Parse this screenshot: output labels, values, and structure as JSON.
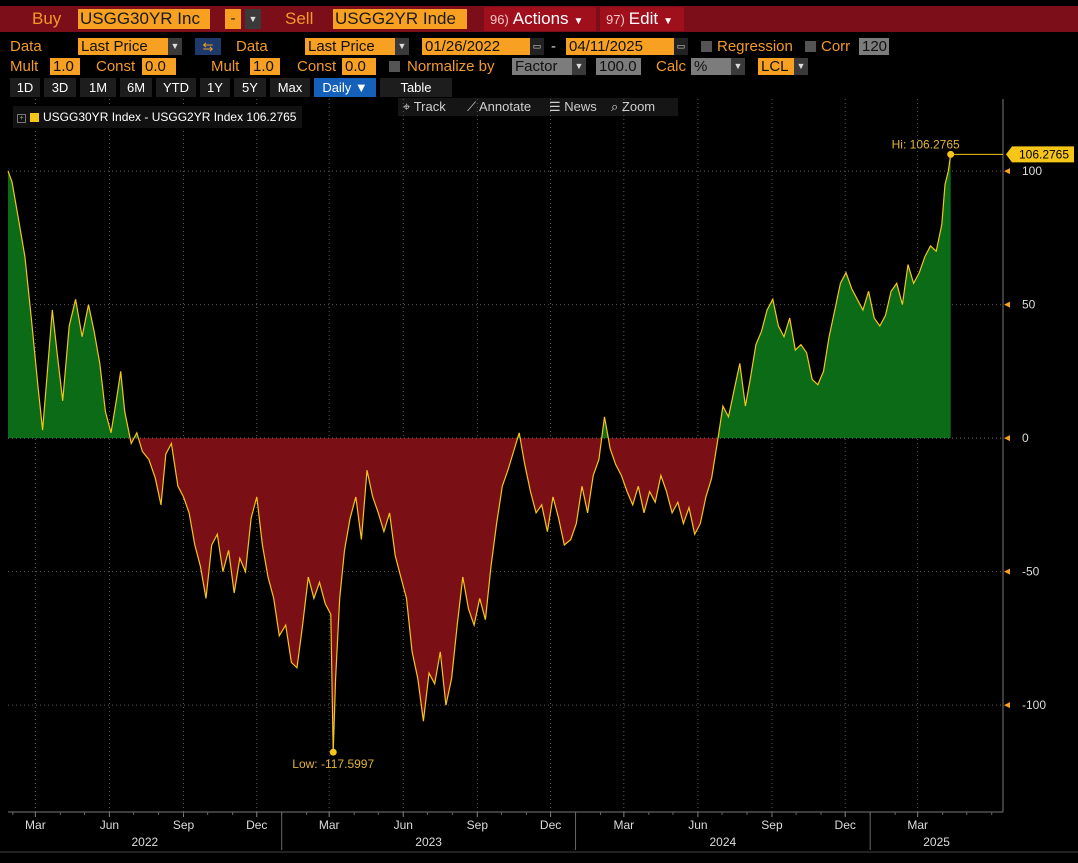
{
  "header": {
    "buy_label": "Buy",
    "buy_ticker": "USGG30YR Inc",
    "op_symbol": "-",
    "sell_label": "Sell",
    "sell_ticker": "USGG2YR Inde",
    "actions_num": "96)",
    "actions_label": "Actions",
    "edit_num": "97)",
    "edit_label": "Edit"
  },
  "controls": {
    "data1_label": "Data",
    "data1_value": "Last Price",
    "data2_label": "Data",
    "data2_value": "Last Price",
    "start_date": "01/26/2022",
    "date_sep": "-",
    "end_date": "04/11/2025",
    "regression_label": "Regression",
    "corr_label": "Corr",
    "corr_value": "120",
    "mult1_label": "Mult",
    "mult1_value": "1.0",
    "const1_label": "Const",
    "const1_value": "0.0",
    "mult2_label": "Mult",
    "mult2_value": "1.0",
    "const2_label": "Const",
    "const2_value": "0.0",
    "normalize_label": "Normalize by",
    "normalize_value": "Factor",
    "factor_value": "100.0",
    "calc_label": "Calc",
    "calc_value": "%",
    "currency_value": "LCL"
  },
  "tabs": [
    "1D",
    "3D",
    "1M",
    "6M",
    "YTD",
    "1Y",
    "5Y",
    "Max"
  ],
  "daily_label": "Daily ▼",
  "table_label": "Table",
  "tools": {
    "track": "Track",
    "annotate": "Annotate",
    "news": "News",
    "zoom": "Zoom"
  },
  "colors": {
    "positive_fill": "#0b6b16",
    "negative_fill": "#7a0f16",
    "line": "#f5c518",
    "header": "#7b0e18",
    "accent": "#f7a021"
  },
  "chart_data": {
    "type": "area",
    "series_name": "USGG30YR Index - USGG2YR Index",
    "last_value": 106.2765,
    "last_value_label": "106.2765",
    "legend_text": "USGG30YR Index - USGG2YR Index 106.2765",
    "hi_label": "Hi: 106.2765",
    "low_label": "Low: -117.5997",
    "ylim": [
      -140,
      127
    ],
    "yticks": [
      100,
      50,
      0,
      -50,
      -100
    ],
    "ytick_labels": [
      "100",
      "50",
      "0",
      "-50",
      "-100"
    ],
    "xlim": [
      "2022-01-26",
      "2025-06-15"
    ],
    "month_ticks": [
      {
        "date": "2022-03-01",
        "label": "Mar"
      },
      {
        "date": "2022-06-01",
        "label": "Jun"
      },
      {
        "date": "2022-09-01",
        "label": "Sep"
      },
      {
        "date": "2022-12-01",
        "label": "Dec"
      },
      {
        "date": "2023-03-01",
        "label": "Mar"
      },
      {
        "date": "2023-06-01",
        "label": "Jun"
      },
      {
        "date": "2023-09-01",
        "label": "Sep"
      },
      {
        "date": "2023-12-01",
        "label": "Dec"
      },
      {
        "date": "2024-03-01",
        "label": "Mar"
      },
      {
        "date": "2024-06-01",
        "label": "Jun"
      },
      {
        "date": "2024-09-01",
        "label": "Sep"
      },
      {
        "date": "2024-12-01",
        "label": "Dec"
      },
      {
        "date": "2025-03-01",
        "label": "Mar"
      }
    ],
    "year_ticks": [
      {
        "date": "2022-01-01",
        "label": "2022"
      },
      {
        "date": "2023-01-01",
        "label": "2023"
      },
      {
        "date": "2024-01-01",
        "label": "2024"
      },
      {
        "date": "2025-01-01",
        "label": "2025"
      }
    ],
    "grid": true,
    "points": [
      [
        "2022-01-26",
        100
      ],
      [
        "2022-01-31",
        96
      ],
      [
        "2022-02-08",
        82
      ],
      [
        "2022-02-16",
        68
      ],
      [
        "2022-02-24",
        45
      ],
      [
        "2022-03-04",
        20
      ],
      [
        "2022-03-10",
        3
      ],
      [
        "2022-03-16",
        25
      ],
      [
        "2022-03-22",
        48
      ],
      [
        "2022-03-28",
        32
      ],
      [
        "2022-04-04",
        14
      ],
      [
        "2022-04-12",
        42
      ],
      [
        "2022-04-20",
        52
      ],
      [
        "2022-04-28",
        38
      ],
      [
        "2022-05-06",
        50
      ],
      [
        "2022-05-13",
        40
      ],
      [
        "2022-05-20",
        28
      ],
      [
        "2022-05-27",
        10
      ],
      [
        "2022-06-03",
        2
      ],
      [
        "2022-06-10",
        15
      ],
      [
        "2022-06-15",
        25
      ],
      [
        "2022-06-20",
        10
      ],
      [
        "2022-06-28",
        -2
      ],
      [
        "2022-07-05",
        2
      ],
      [
        "2022-07-12",
        -5
      ],
      [
        "2022-07-20",
        -8
      ],
      [
        "2022-07-28",
        -15
      ],
      [
        "2022-08-04",
        -25
      ],
      [
        "2022-08-10",
        -6
      ],
      [
        "2022-08-17",
        -2
      ],
      [
        "2022-08-25",
        -18
      ],
      [
        "2022-09-01",
        -22
      ],
      [
        "2022-09-08",
        -28
      ],
      [
        "2022-09-15",
        -40
      ],
      [
        "2022-09-22",
        -48
      ],
      [
        "2022-09-29",
        -60
      ],
      [
        "2022-10-06",
        -40
      ],
      [
        "2022-10-13",
        -36
      ],
      [
        "2022-10-20",
        -50
      ],
      [
        "2022-10-27",
        -42
      ],
      [
        "2022-11-03",
        -58
      ],
      [
        "2022-11-10",
        -45
      ],
      [
        "2022-11-17",
        -50
      ],
      [
        "2022-11-24",
        -30
      ],
      [
        "2022-12-01",
        -22
      ],
      [
        "2022-12-08",
        -40
      ],
      [
        "2022-12-15",
        -52
      ],
      [
        "2022-12-22",
        -60
      ],
      [
        "2022-12-29",
        -74
      ],
      [
        "2023-01-06",
        -70
      ],
      [
        "2023-01-13",
        -84
      ],
      [
        "2023-01-20",
        -86
      ],
      [
        "2023-01-27",
        -70
      ],
      [
        "2023-02-03",
        -52
      ],
      [
        "2023-02-10",
        -60
      ],
      [
        "2023-02-17",
        -54
      ],
      [
        "2023-02-24",
        -62
      ],
      [
        "2023-03-03",
        -66
      ],
      [
        "2023-03-06",
        -117.5997
      ],
      [
        "2023-03-09",
        -90
      ],
      [
        "2023-03-14",
        -60
      ],
      [
        "2023-03-20",
        -42
      ],
      [
        "2023-03-27",
        -30
      ],
      [
        "2023-04-03",
        -22
      ],
      [
        "2023-04-10",
        -38
      ],
      [
        "2023-04-17",
        -12
      ],
      [
        "2023-04-24",
        -22
      ],
      [
        "2023-05-01",
        -28
      ],
      [
        "2023-05-08",
        -35
      ],
      [
        "2023-05-15",
        -28
      ],
      [
        "2023-05-22",
        -44
      ],
      [
        "2023-05-29",
        -52
      ],
      [
        "2023-06-05",
        -60
      ],
      [
        "2023-06-12",
        -80
      ],
      [
        "2023-06-19",
        -90
      ],
      [
        "2023-06-26",
        -106
      ],
      [
        "2023-07-03",
        -88
      ],
      [
        "2023-07-10",
        -92
      ],
      [
        "2023-07-17",
        -80
      ],
      [
        "2023-07-24",
        -100
      ],
      [
        "2023-07-31",
        -90
      ],
      [
        "2023-08-07",
        -70
      ],
      [
        "2023-08-14",
        -52
      ],
      [
        "2023-08-21",
        -64
      ],
      [
        "2023-08-28",
        -70
      ],
      [
        "2023-09-04",
        -60
      ],
      [
        "2023-09-11",
        -68
      ],
      [
        "2023-09-18",
        -48
      ],
      [
        "2023-09-25",
        -32
      ],
      [
        "2023-10-02",
        -18
      ],
      [
        "2023-10-09",
        -12
      ],
      [
        "2023-10-16",
        -5
      ],
      [
        "2023-10-23",
        2
      ],
      [
        "2023-10-30",
        -10
      ],
      [
        "2023-11-06",
        -20
      ],
      [
        "2023-11-13",
        -28
      ],
      [
        "2023-11-20",
        -25
      ],
      [
        "2023-11-27",
        -35
      ],
      [
        "2023-12-04",
        -22
      ],
      [
        "2023-12-11",
        -30
      ],
      [
        "2023-12-18",
        -40
      ],
      [
        "2023-12-26",
        -38
      ],
      [
        "2024-01-02",
        -32
      ],
      [
        "2024-01-09",
        -18
      ],
      [
        "2024-01-16",
        -28
      ],
      [
        "2024-01-23",
        -14
      ],
      [
        "2024-01-30",
        -8
      ],
      [
        "2024-02-06",
        8
      ],
      [
        "2024-02-13",
        -4
      ],
      [
        "2024-02-20",
        -10
      ],
      [
        "2024-02-27",
        -14
      ],
      [
        "2024-03-05",
        -20
      ],
      [
        "2024-03-12",
        -25
      ],
      [
        "2024-03-19",
        -18
      ],
      [
        "2024-03-26",
        -28
      ],
      [
        "2024-04-02",
        -20
      ],
      [
        "2024-04-09",
        -24
      ],
      [
        "2024-04-16",
        -14
      ],
      [
        "2024-04-23",
        -20
      ],
      [
        "2024-04-30",
        -28
      ],
      [
        "2024-05-07",
        -24
      ],
      [
        "2024-05-14",
        -32
      ],
      [
        "2024-05-21",
        -26
      ],
      [
        "2024-05-28",
        -36
      ],
      [
        "2024-06-04",
        -32
      ],
      [
        "2024-06-11",
        -22
      ],
      [
        "2024-06-18",
        -15
      ],
      [
        "2024-06-25",
        -2
      ],
      [
        "2024-07-02",
        12
      ],
      [
        "2024-07-09",
        8
      ],
      [
        "2024-07-16",
        18
      ],
      [
        "2024-07-23",
        28
      ],
      [
        "2024-07-30",
        12
      ],
      [
        "2024-08-05",
        22
      ],
      [
        "2024-08-12",
        35
      ],
      [
        "2024-08-19",
        40
      ],
      [
        "2024-08-26",
        48
      ],
      [
        "2024-09-02",
        52
      ],
      [
        "2024-09-09",
        42
      ],
      [
        "2024-09-16",
        38
      ],
      [
        "2024-09-23",
        45
      ],
      [
        "2024-09-30",
        33
      ],
      [
        "2024-10-07",
        35
      ],
      [
        "2024-10-14",
        32
      ],
      [
        "2024-10-21",
        22
      ],
      [
        "2024-10-28",
        20
      ],
      [
        "2024-11-04",
        25
      ],
      [
        "2024-11-11",
        38
      ],
      [
        "2024-11-18",
        48
      ],
      [
        "2024-11-25",
        58
      ],
      [
        "2024-12-02",
        62
      ],
      [
        "2024-12-09",
        56
      ],
      [
        "2024-12-16",
        52
      ],
      [
        "2024-12-23",
        48
      ],
      [
        "2024-12-30",
        55
      ],
      [
        "2025-01-06",
        45
      ],
      [
        "2025-01-13",
        42
      ],
      [
        "2025-01-20",
        46
      ],
      [
        "2025-01-27",
        55
      ],
      [
        "2025-02-03",
        58
      ],
      [
        "2025-02-10",
        50
      ],
      [
        "2025-02-17",
        65
      ],
      [
        "2025-02-24",
        58
      ],
      [
        "2025-03-03",
        62
      ],
      [
        "2025-03-10",
        68
      ],
      [
        "2025-03-17",
        72
      ],
      [
        "2025-03-24",
        70
      ],
      [
        "2025-03-31",
        80
      ],
      [
        "2025-04-04",
        95
      ],
      [
        "2025-04-08",
        100
      ],
      [
        "2025-04-11",
        106.2765
      ]
    ]
  }
}
